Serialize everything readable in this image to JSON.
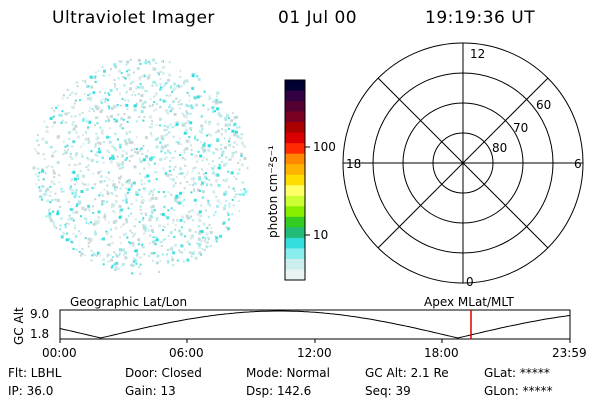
{
  "header": {
    "title": "Ultraviolet Imager",
    "date": "01 Jul 00",
    "time": "19:19:36 UT"
  },
  "colorbar": {
    "unit_label": "photon cm⁻²s⁻¹",
    "ticks": [
      "100",
      "10"
    ],
    "colors": [
      "#000033",
      "#330044",
      "#550033",
      "#7a0022",
      "#aa0000",
      "#dd0000",
      "#ff2a00",
      "#ff8800",
      "#ffb300",
      "#ffdd00",
      "#ffff66",
      "#ccff33",
      "#88ee00",
      "#33cc22",
      "#22bb77",
      "#33dddd",
      "#88eeee",
      "#cceeee",
      "#e8f4f4"
    ]
  },
  "polar": {
    "hour_labels": [
      "12",
      "18",
      "6",
      "0"
    ],
    "lat_labels": [
      "60",
      "70",
      "80"
    ]
  },
  "labels": {
    "left_panel": "Geographic Lat/Lon",
    "right_panel": "Apex MLat/MLT"
  },
  "altitude_plot": {
    "ylabel": "GC Alt",
    "y_ticks": [
      "9.0",
      "1.8"
    ],
    "x_ticks": [
      "00:00",
      "06:00",
      "12:00",
      "18:00",
      "23:59"
    ],
    "marker_color": "#dd0000"
  },
  "info": {
    "flt": "Flt: LBHL",
    "ip": "IP: 36.0",
    "door": "Door: Closed",
    "gain": "Gain: 13",
    "mode": "Mode: Normal",
    "dsp": "Dsp:  142.6",
    "gc_alt": "GC Alt: 2.1 Re",
    "seq": "Seq: 39",
    "glat": "GLat: *****",
    "glon": "GLon: *****"
  }
}
